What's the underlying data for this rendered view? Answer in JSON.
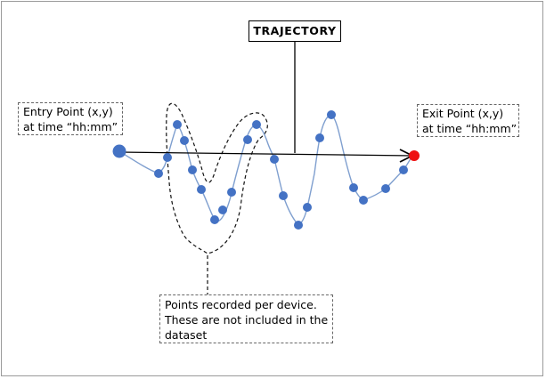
{
  "title": "TRAJECTORY",
  "entry_label": {
    "line1": "Entry Point (x,y)",
    "line2": "at time “hh:mm”"
  },
  "exit_label": {
    "line1": "Exit Point (x,y)",
    "line2": "at time “hh:mm”"
  },
  "note_label": {
    "line1": "Points recorded per device.",
    "line2": "These are not included in the",
    "line3": "dataset"
  },
  "colors": {
    "point": "#4472c4",
    "exit_point": "#ee1111",
    "curve": "#7f9fcf",
    "arrow": "#000000"
  }
}
